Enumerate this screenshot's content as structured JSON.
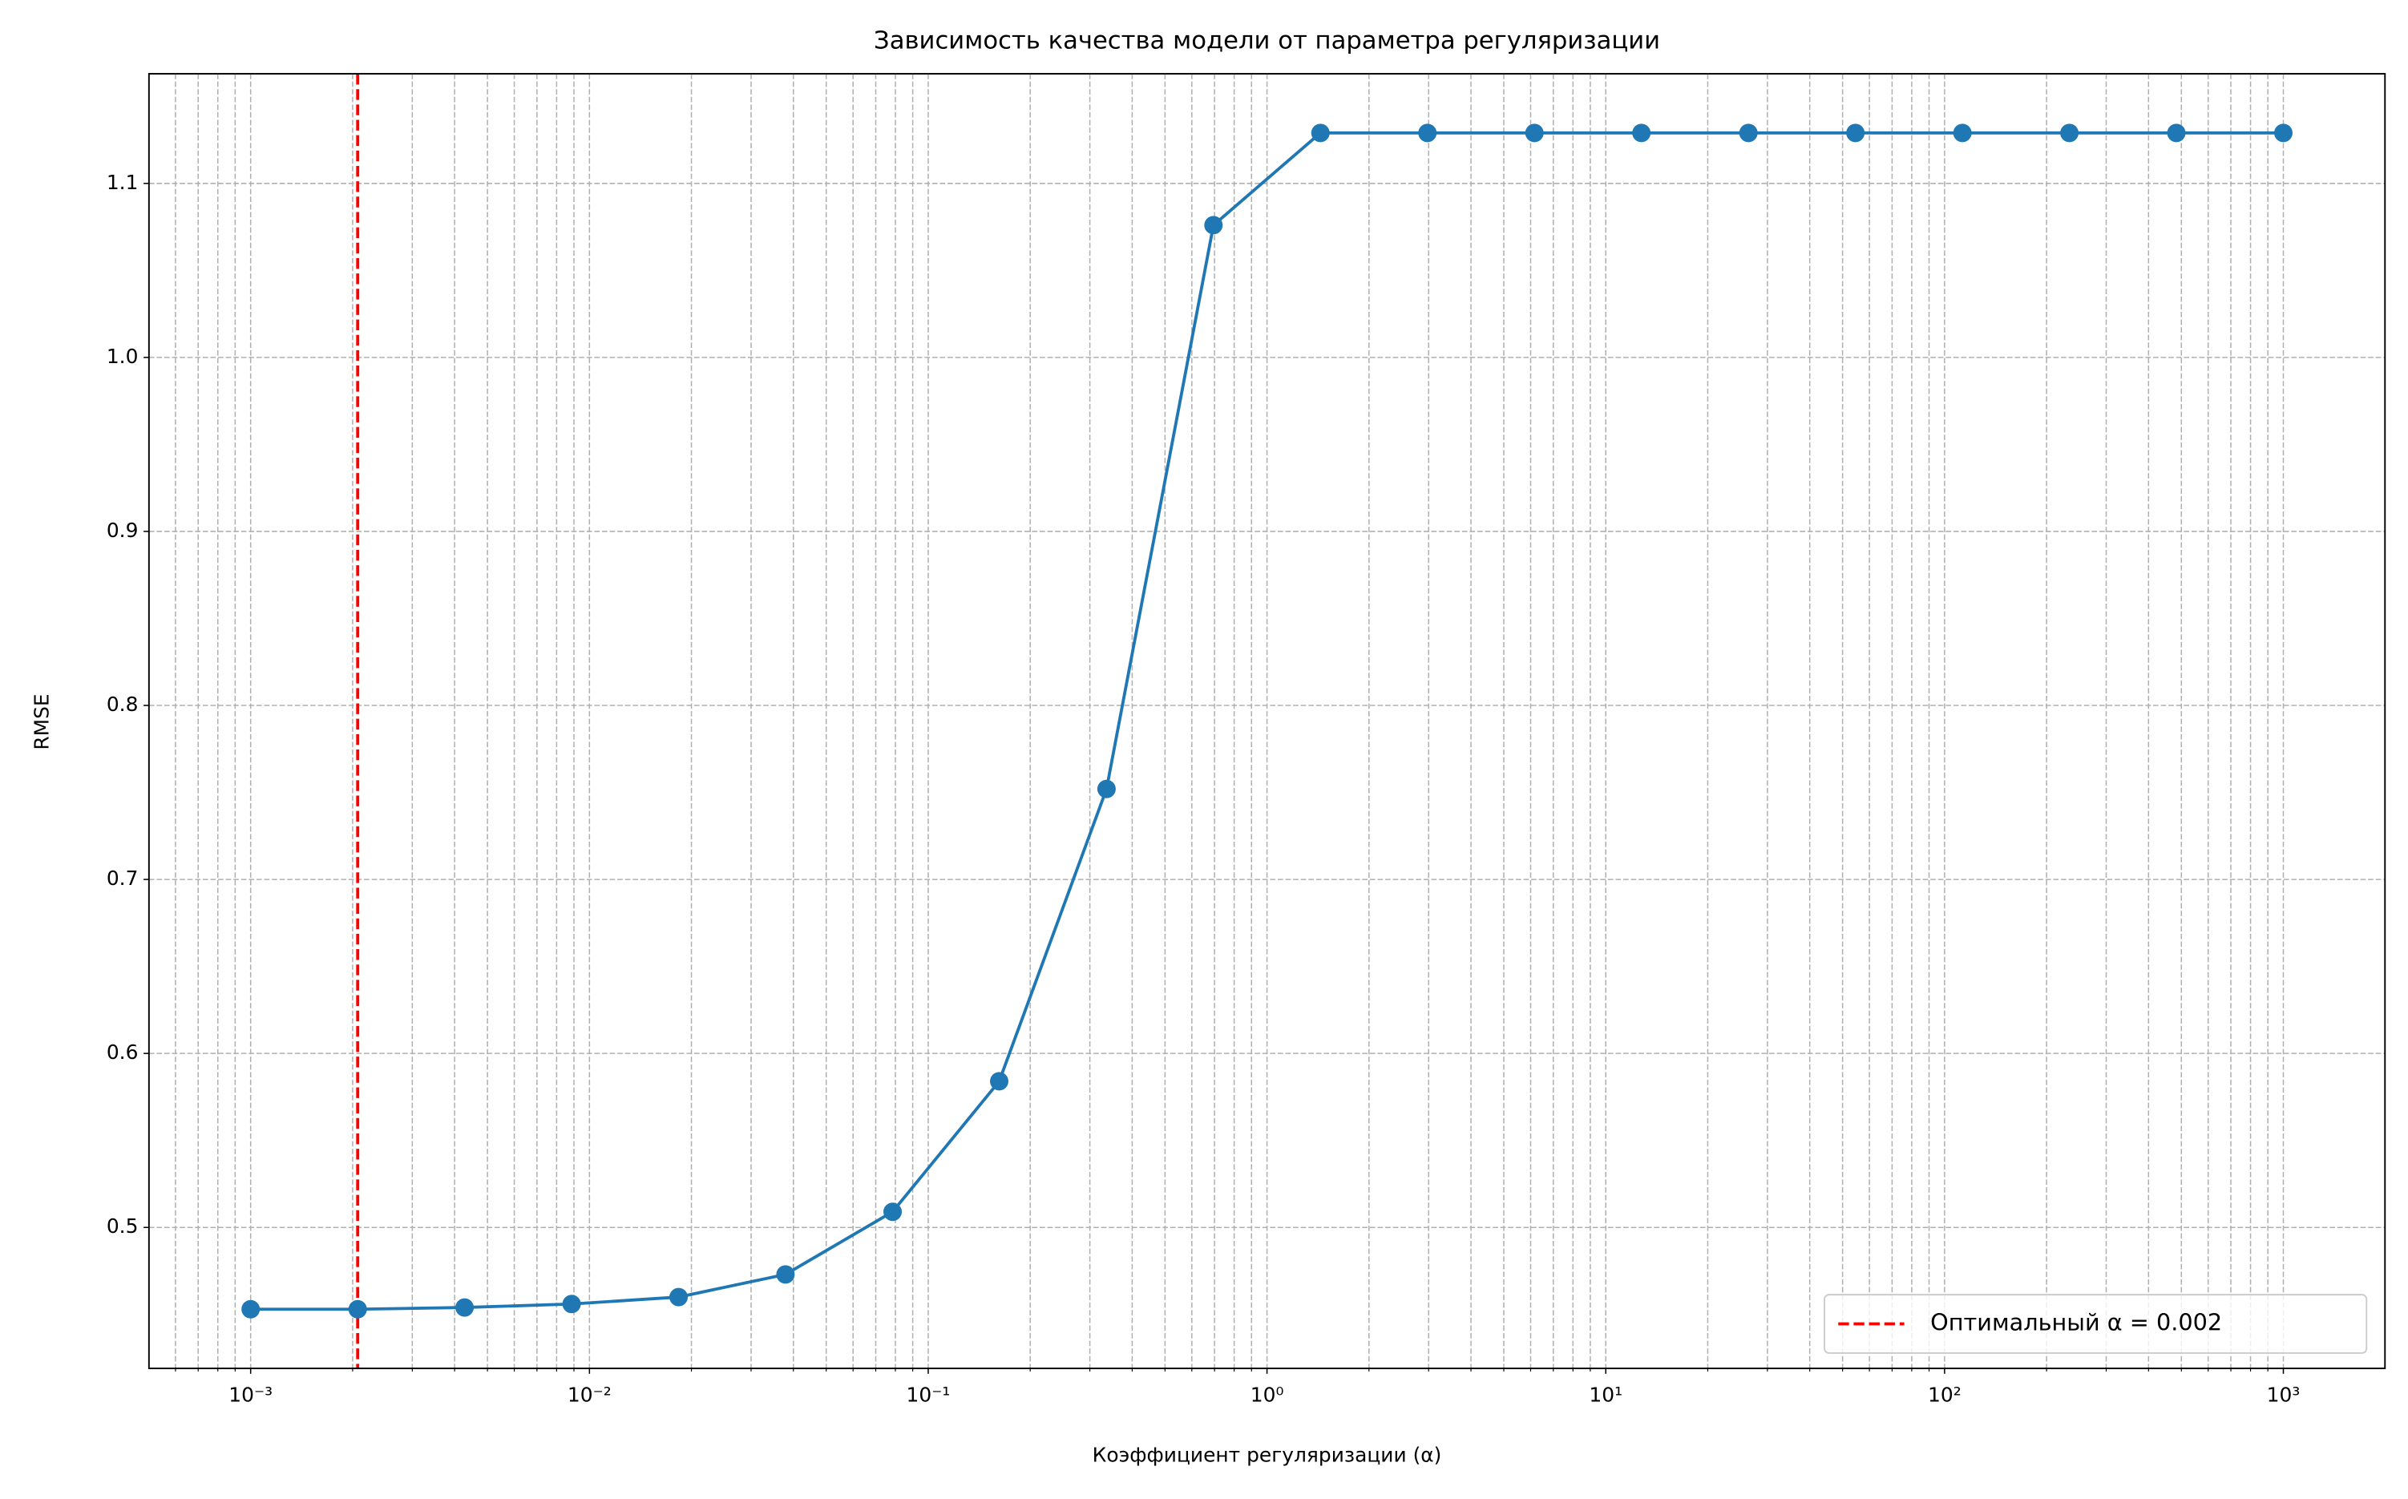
{
  "chart_data": {
    "type": "line",
    "title": "Зависимость качества модели от параметра регуляризации",
    "xlabel": "Коэффициент регуляризации (α)",
    "ylabel": "RMSE",
    "x": [
      0.001,
      0.00207,
      0.00428,
      0.00886,
      0.01833,
      0.0379,
      0.0785,
      0.162,
      0.336,
      0.695,
      1.438,
      2.976,
      6.158,
      12.74,
      26.37,
      54.56,
      112.9,
      233.6,
      483.3,
      1000
    ],
    "series": [
      {
        "name": "RMSE",
        "color": "#1f77b4",
        "values": [
          0.453,
          0.453,
          0.454,
          0.456,
          0.46,
          0.473,
          0.509,
          0.584,
          0.752,
          1.076,
          1.129,
          1.129,
          1.129,
          1.129,
          1.129,
          1.129,
          1.129,
          1.129,
          1.129,
          1.129
        ]
      }
    ],
    "reference_line": {
      "x": 0.00207,
      "label": "Оптимальный α = 0.002",
      "color": "#ff0000"
    },
    "xscale": "log",
    "xlim": [
      0.000501,
      1995
    ],
    "ylim": [
      0.419,
      1.163
    ],
    "xticks": [
      {
        "value": 0.001,
        "label": "10⁻³"
      },
      {
        "value": 0.01,
        "label": "10⁻²"
      },
      {
        "value": 0.1,
        "label": "10⁻¹"
      },
      {
        "value": 1,
        "label": "10⁰"
      },
      {
        "value": 10,
        "label": "10¹"
      },
      {
        "value": 100,
        "label": "10²"
      },
      {
        "value": 1000,
        "label": "10³"
      }
    ],
    "xminorticks": [
      0.0006,
      0.0007,
      0.0008,
      0.0009,
      0.002,
      0.003,
      0.004,
      0.005,
      0.006,
      0.007,
      0.008,
      0.009,
      0.02,
      0.03,
      0.04,
      0.05,
      0.06,
      0.07,
      0.08,
      0.09,
      0.2,
      0.3,
      0.4,
      0.5,
      0.6,
      0.7,
      0.8,
      0.9,
      2,
      3,
      4,
      5,
      6,
      7,
      8,
      9,
      20,
      30,
      40,
      50,
      60,
      70,
      80,
      90,
      200,
      300,
      400,
      500,
      600,
      700,
      800,
      900
    ],
    "yticks": [
      0.5,
      0.6,
      0.7,
      0.8,
      0.9,
      {
        "value": 1,
        "label": "1.0"
      },
      1.1
    ],
    "grid": true,
    "legend": "lower right"
  }
}
